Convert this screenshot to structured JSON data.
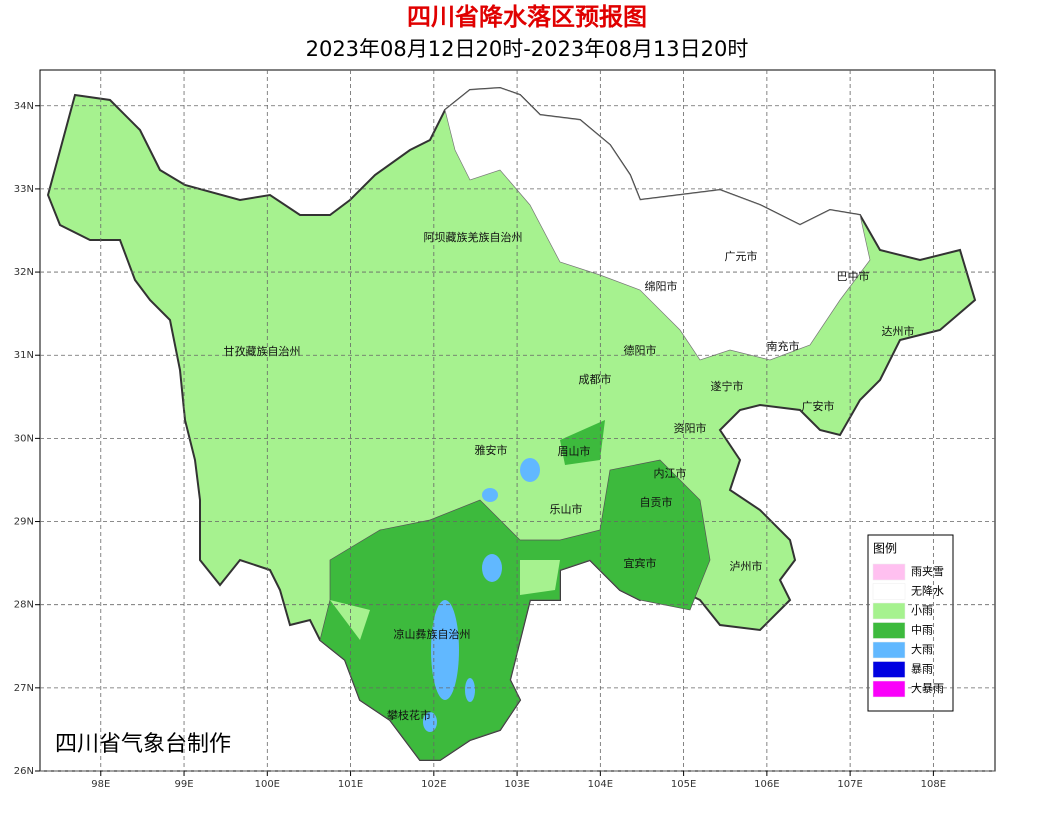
{
  "header": {
    "title": "四川省降水落区预报图",
    "subtitle": "2023年08月12日20时-2023年08月13日20时"
  },
  "map": {
    "lon_range": [
      97.27,
      108.74
    ],
    "lat_range": [
      26,
      34.43
    ],
    "grid": true,
    "lon_ticks": [
      {
        "value": 98,
        "label": "98E"
      },
      {
        "value": 99,
        "label": "99E"
      },
      {
        "value": 100,
        "label": "100E"
      },
      {
        "value": 101,
        "label": "101E"
      },
      {
        "value": 102,
        "label": "102E"
      },
      {
        "value": 103,
        "label": "103E"
      },
      {
        "value": 104,
        "label": "104E"
      },
      {
        "value": 105,
        "label": "105E"
      },
      {
        "value": 106,
        "label": "106E"
      },
      {
        "value": 107,
        "label": "107E"
      },
      {
        "value": 108,
        "label": "108E"
      }
    ],
    "lat_ticks": [
      {
        "value": 26,
        "label": "26N"
      },
      {
        "value": 27,
        "label": "27N"
      },
      {
        "value": 28,
        "label": "28N"
      },
      {
        "value": 29,
        "label": "29N"
      },
      {
        "value": 30,
        "label": "30N"
      },
      {
        "value": 31,
        "label": "31N"
      },
      {
        "value": 32,
        "label": "32N"
      },
      {
        "value": 33,
        "label": "33N"
      },
      {
        "value": 34,
        "label": "34N"
      }
    ],
    "cities": [
      "阿坝藏族羌族自治州",
      "甘孜藏族自治州",
      "广元市",
      "巴中市",
      "绵阳市",
      "达州市",
      "德阳市",
      "南充市",
      "成都市",
      "遂宁市",
      "广安市",
      "资阳市",
      "雅安市",
      "眉山市",
      "内江市",
      "自贡市",
      "乐山市",
      "宜宾市",
      "泸州市",
      "凉山彝族自治州",
      "攀枝花市"
    ]
  },
  "legend": {
    "title": "图例",
    "items": [
      {
        "label": "雨夹雪",
        "color": "#ffc0f0"
      },
      {
        "label": "无降水",
        "color": "#ffffff"
      },
      {
        "label": "小雨",
        "color": "#a6f28f"
      },
      {
        "label": "中雨",
        "color": "#3dba3d"
      },
      {
        "label": "大雨",
        "color": "#61b8ff"
      },
      {
        "label": "暴雨",
        "color": "#0000e1"
      },
      {
        "label": "大暴雨",
        "color": "#fa00fa"
      }
    ]
  },
  "credit": "四川省气象台制作"
}
